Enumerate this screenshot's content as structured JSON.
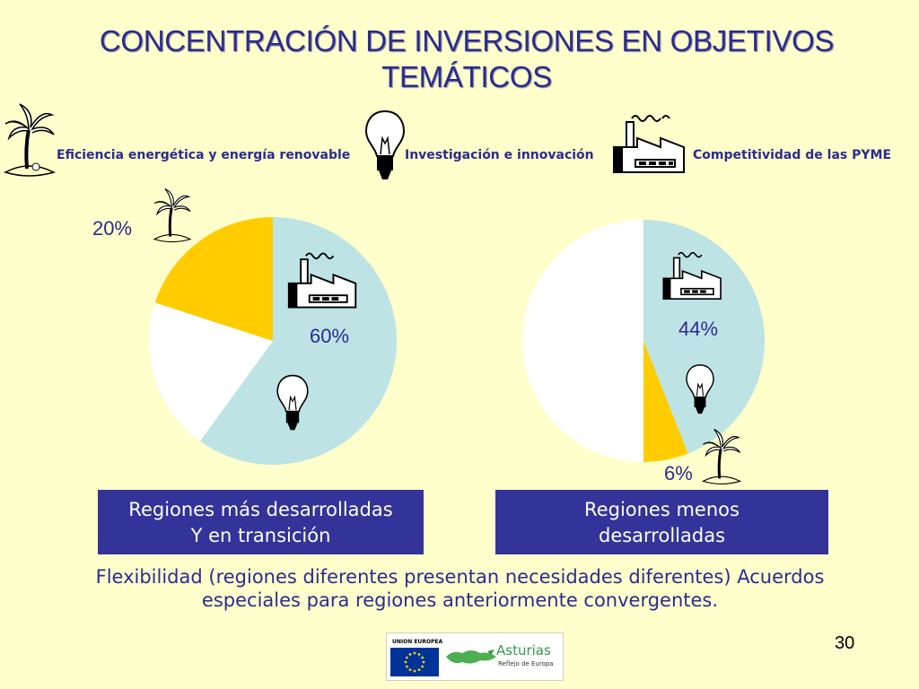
{
  "title": {
    "line1": "CONCENTRACIÓN DE INVERSIONES EN OBJETIVOS",
    "line2": "TEMÁTICOS"
  },
  "legend": [
    {
      "label": "Eficiencia energética y energía renovable",
      "icon": "palm-tree-island-icon"
    },
    {
      "label": "Investigación e innovación",
      "icon": "light-bulb-icon"
    },
    {
      "label": "Competitividad de las PYME",
      "icon": "factory-icon"
    }
  ],
  "colors": {
    "background": "#ffffcc",
    "title_text": "#2b2b8f",
    "box_fill": "#333399",
    "pie_light_blue": "#bde3e5",
    "pie_yellow": "#ffcc00",
    "pie_white": "#ffffff"
  },
  "chart_data": [
    {
      "type": "pie",
      "title": "Regiones más desarrolladas Y en transición",
      "label_lines": [
        "Regiones más desarrolladas",
        "Y en transición"
      ],
      "slices": [
        {
          "category": "Competitividad de las PYME",
          "value": 60,
          "label": "60%",
          "color": "#bde3e5"
        },
        {
          "category": "Investigación e innovación",
          "value": 20,
          "label": "",
          "color": "#ffffff"
        },
        {
          "category": "Eficiencia energética y energía renovable",
          "value": 20,
          "label": "20%",
          "color": "#ffcc00"
        }
      ]
    },
    {
      "type": "pie",
      "title": "Regiones menos desarrolladas",
      "label_lines": [
        "Regiones menos",
        "desarrolladas"
      ],
      "slices": [
        {
          "category": "Competitividad de las PYME",
          "value": 44,
          "label": "44%",
          "color": "#bde3e5"
        },
        {
          "category": "Eficiencia energética y energía renovable",
          "value": 6,
          "label": "6%",
          "color": "#ffcc00"
        },
        {
          "category": "Investigación e innovación",
          "value": 50,
          "label": "",
          "color": "#ffffff"
        }
      ]
    }
  ],
  "footer_note": {
    "line1": "Flexibilidad (regiones diferentes presentan necesidades diferentes) Acuerdos",
    "line2": "especiales para regiones anteriormente convergentes."
  },
  "page_number": "30",
  "logo": {
    "eu_text": "UNION EUROPEA",
    "brand": "Asturias",
    "tagline": "Reflejo de Europa"
  }
}
